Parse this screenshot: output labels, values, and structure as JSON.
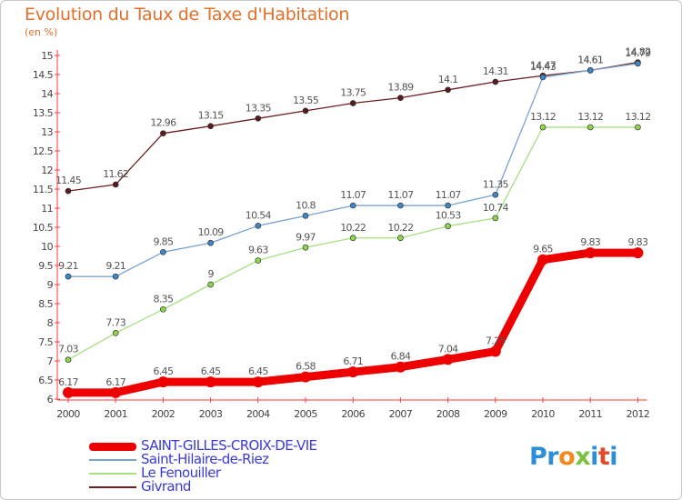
{
  "title": "Evolution du Taux de Taxe d'Habitation",
  "subtitle": "(en %)",
  "chart_data": {
    "type": "line",
    "x": [
      "2000",
      "2001",
      "2002",
      "2003",
      "2004",
      "2005",
      "2006",
      "2007",
      "2008",
      "2009",
      "2010",
      "2011",
      "2012"
    ],
    "ylim": [
      6,
      15
    ],
    "yticks": [
      "6",
      "6.5",
      "7",
      "7.5",
      "8",
      "8.5",
      "9",
      "9.5",
      "10",
      "10.5",
      "11",
      "11.5",
      "12",
      "12.5",
      "13",
      "13.5",
      "14",
      "14.5",
      "15"
    ],
    "grid": false,
    "legend_position": "bottom-left",
    "series": [
      {
        "name": "Givrand",
        "color": "#6b1f22",
        "marker": "#5a1a1d",
        "width": 1.3,
        "values": [
          11.45,
          11.62,
          12.96,
          13.15,
          13.35,
          13.55,
          13.75,
          13.89,
          14.1,
          14.31,
          14.47,
          14.61,
          14.82
        ],
        "labels": [
          "11.45",
          "11.62",
          "12.96",
          "13.15",
          "13.35",
          "13.55",
          "13.75",
          "13.89",
          "14.1",
          "14.31",
          "14.47",
          "14.61",
          "14.82"
        ]
      },
      {
        "name": "Le Fenouiller",
        "color": "#a6e07f",
        "marker": "#8ed64c",
        "width": 1.3,
        "values": [
          7.03,
          7.73,
          8.35,
          9,
          9.63,
          9.97,
          10.22,
          10.22,
          10.53,
          10.74,
          13.12,
          13.12,
          13.12
        ],
        "labels": [
          "7.03",
          "7.73",
          "8.35",
          "9",
          "9.63",
          "9.97",
          "10.22",
          "10.22",
          "10.53",
          "10.74",
          "13.12",
          "13.12",
          "13.12"
        ]
      },
      {
        "name": "Saint-Hilaire-de-Riez",
        "color": "#7ba3d0",
        "marker": "#3f86c6",
        "width": 1.3,
        "values": [
          9.21,
          9.21,
          9.85,
          10.09,
          10.54,
          10.8,
          11.07,
          11.07,
          11.07,
          11.35,
          14.43,
          14.61,
          14.79
        ],
        "labels": [
          "9.21",
          "9.21",
          "9.85",
          "10.09",
          "10.54",
          "10.8",
          "11.07",
          "11.07",
          "11.07",
          "11.35",
          "14.43",
          "14.61",
          "14.79"
        ]
      },
      {
        "name": "SAINT-GILLES-CROIX-DE-VIE",
        "color": "#ee0000",
        "marker": "#ee0000",
        "width": 9,
        "values": [
          6.17,
          6.17,
          6.45,
          6.45,
          6.45,
          6.58,
          6.71,
          6.84,
          7.04,
          7.25,
          9.65,
          9.83,
          9.83
        ],
        "labels": [
          "6.17",
          "6.17",
          "6.45",
          "6.45",
          "6.45",
          "6.58",
          "6.71",
          "6.84",
          "7.04",
          "7.25",
          "9.65",
          "9.83",
          "9.83"
        ]
      }
    ]
  },
  "legend": [
    {
      "label": "SAINT-GILLES-CROIX-DE-VIE",
      "color": "#ee0000",
      "text_color": "#3a3ad8",
      "thickness": 9
    },
    {
      "label": "Saint-Hilaire-de-Riez",
      "color": "#7ba3d0",
      "text_color": "#3a3ad8",
      "thickness": 2
    },
    {
      "label": "Le Fenouiller",
      "color": "#a6e07f",
      "text_color": "#3a3ad8",
      "thickness": 2
    },
    {
      "label": "Givrand",
      "color": "#6b1f22",
      "text_color": "#3a3ad8",
      "thickness": 2
    }
  ],
  "logo": {
    "letters": [
      "P",
      "r",
      "o",
      "x",
      "i",
      "t",
      "i"
    ],
    "colors": [
      "#2a8fd6",
      "#2a8fd6",
      "#f08a1c",
      "#7cc242",
      "#2a8fd6",
      "#e24a2a",
      "#2a8fd6"
    ]
  }
}
